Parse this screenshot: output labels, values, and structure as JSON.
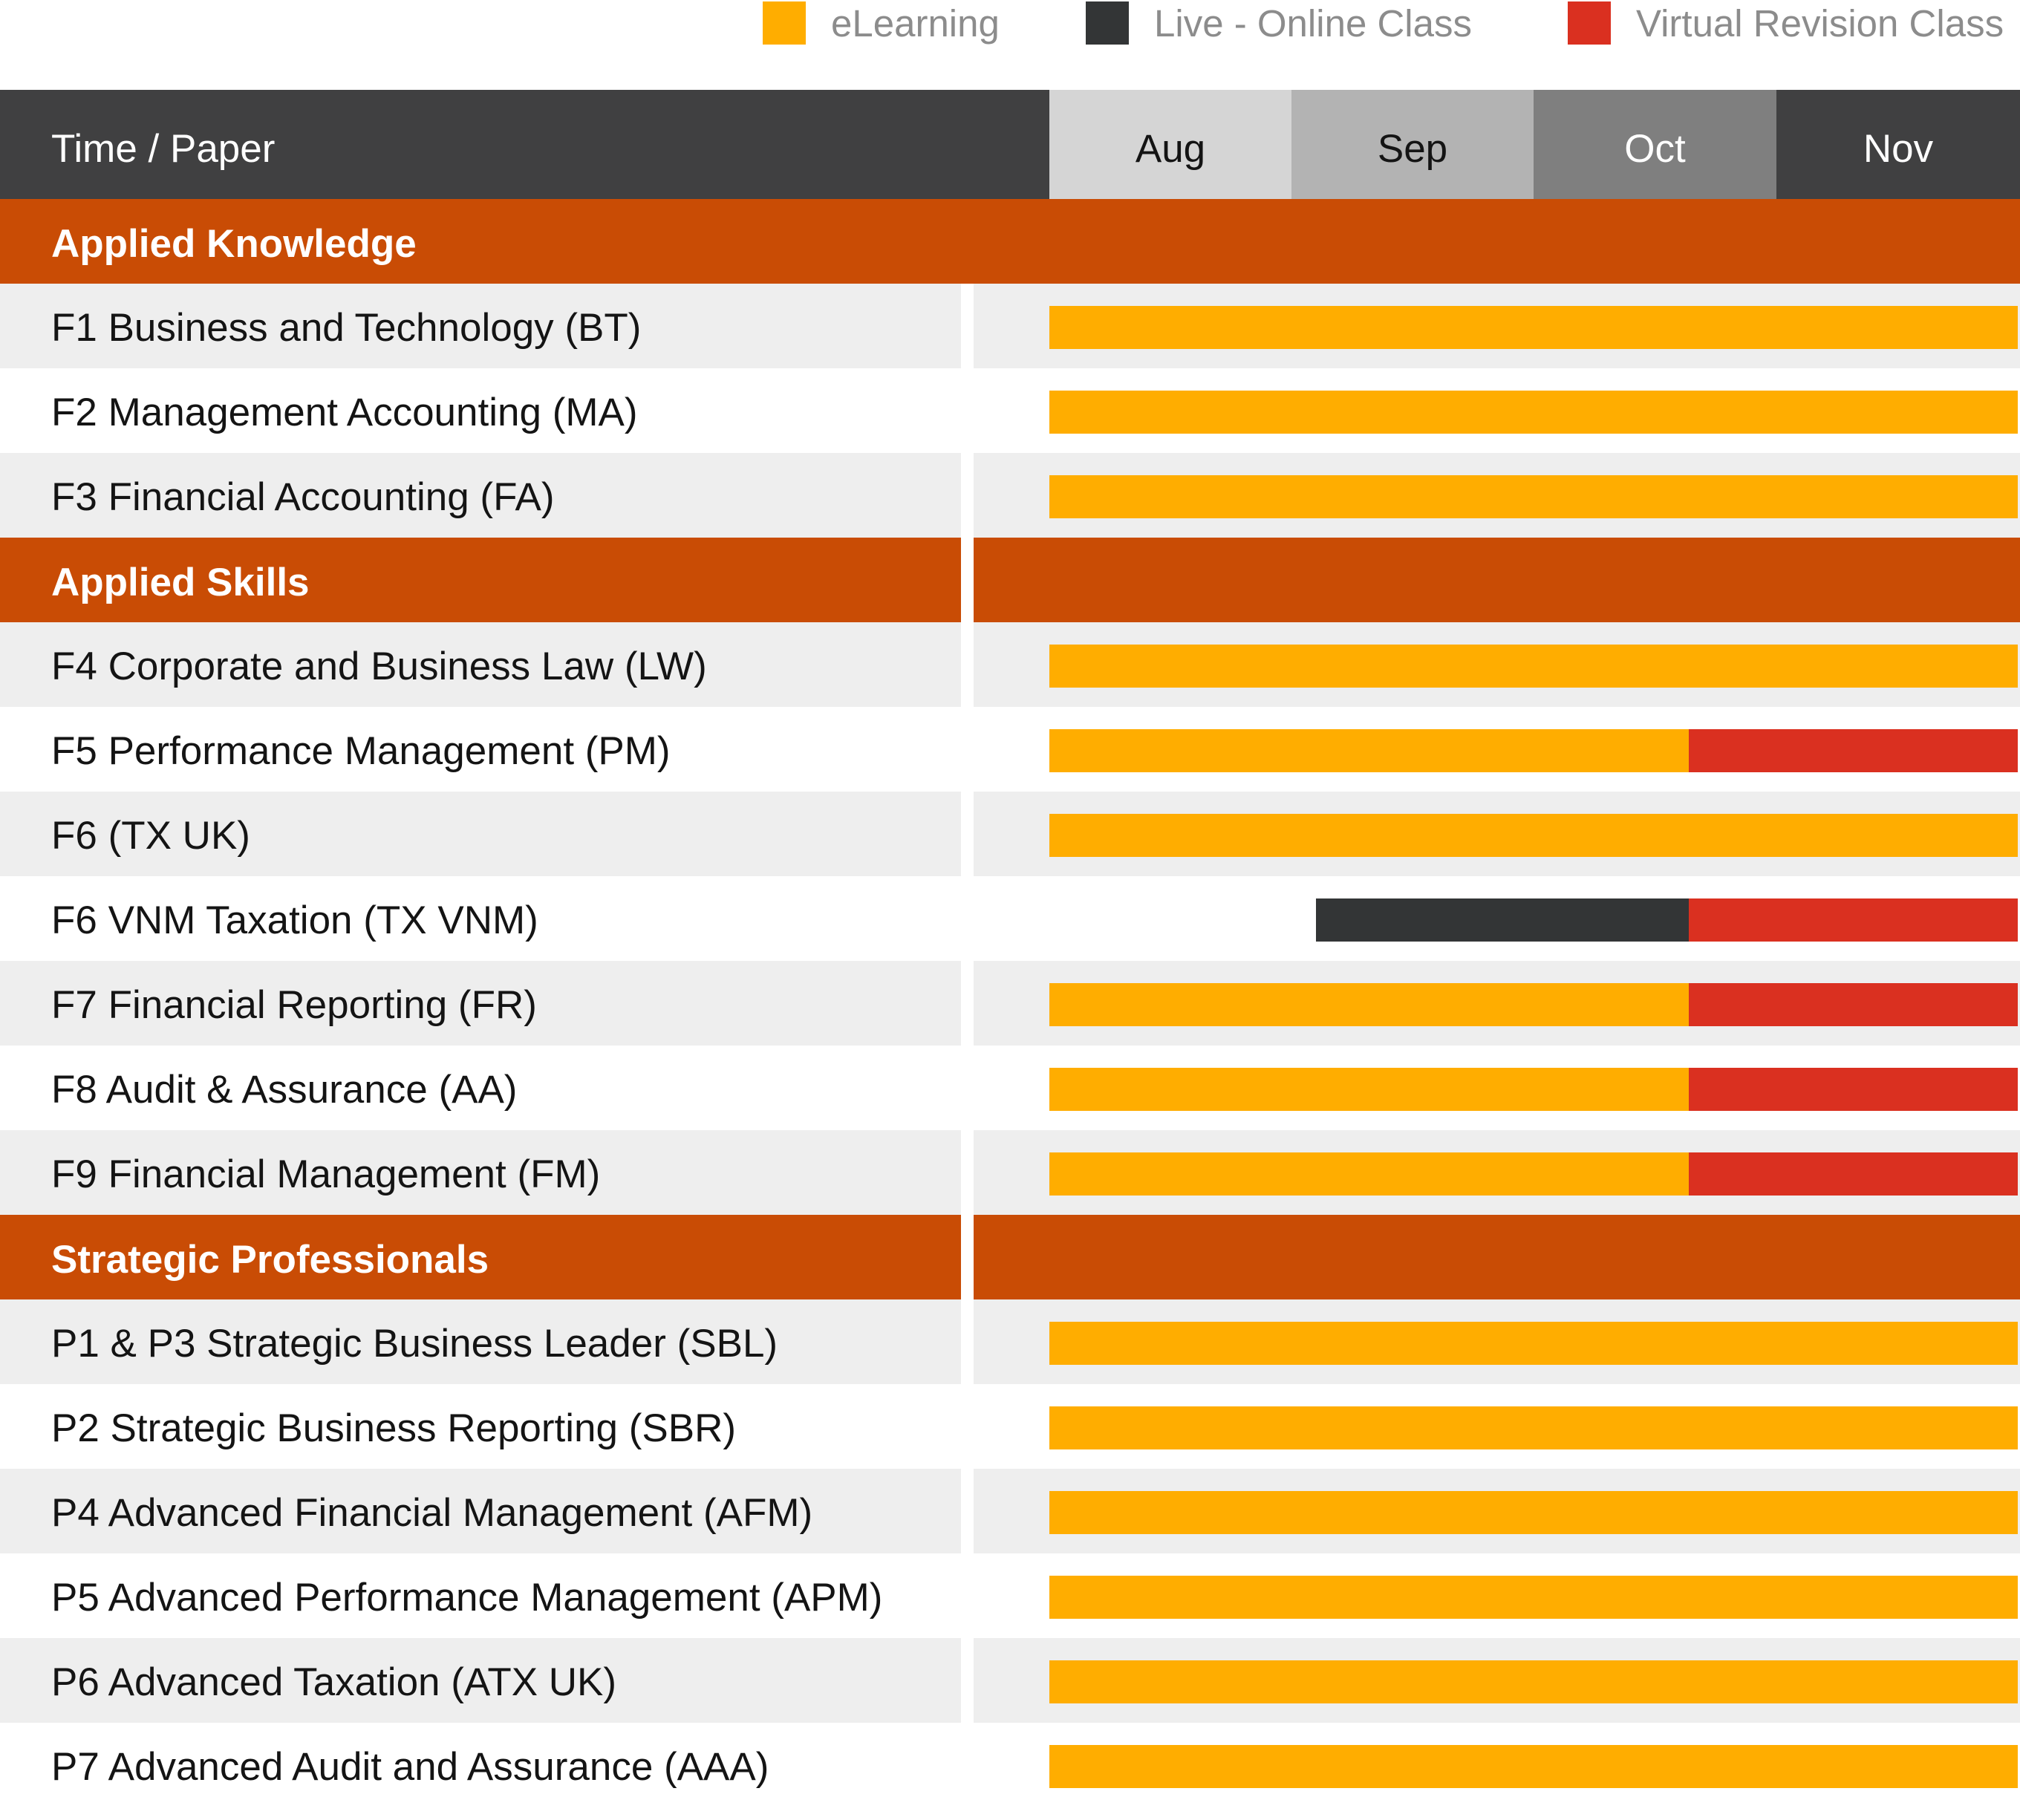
{
  "legend": [
    {
      "label": "eLearning",
      "color": "#FFAD00"
    },
    {
      "label": "Live - Online Class",
      "color": "#333536"
    },
    {
      "label": "Virtual Revision Class",
      "color": "#DA3020"
    }
  ],
  "header": {
    "title": "Time / Paper"
  },
  "months": [
    {
      "label": "Aug",
      "bg": "#D5D5D5",
      "fg": "#141414"
    },
    {
      "label": "Sep",
      "bg": "#B3B3B3",
      "fg": "#141414"
    },
    {
      "label": "Oct",
      "bg": "#7F7F7F",
      "fg": "#FFFFFF"
    },
    {
      "label": "Nov",
      "bg": "#404041",
      "fg": "#FFFFFF"
    }
  ],
  "colors": {
    "section": "#C94C05",
    "row_shaded": "#EEEEEE",
    "row_plain": "#FFFFFF",
    "eLearning": "#FFAD00",
    "live": "#333536",
    "revision": "#DA3020"
  },
  "chart_data": {
    "type": "gantt",
    "time_axis": [
      "Aug",
      "Sep",
      "Oct",
      "Nov"
    ],
    "time_range": [
      "Aug",
      "Nov"
    ],
    "sections": [
      {
        "name": "Applied Knowledge",
        "papers": [
          {
            "name": "F1 Business and Technology (BT)",
            "segments": [
              {
                "type": "eLearning",
                "start": 0,
                "end": 4
              }
            ]
          },
          {
            "name": "F2 Management Accounting (MA)",
            "segments": [
              {
                "type": "eLearning",
                "start": 0,
                "end": 4
              }
            ]
          },
          {
            "name": "F3 Financial Accounting (FA)",
            "segments": [
              {
                "type": "eLearning",
                "start": 0,
                "end": 4
              }
            ]
          }
        ]
      },
      {
        "name": "Applied Skills",
        "papers": [
          {
            "name": "F4 Corporate and Business Law (LW)",
            "segments": [
              {
                "type": "eLearning",
                "start": 0,
                "end": 4
              }
            ]
          },
          {
            "name": "F5 Performance Management (PM)",
            "segments": [
              {
                "type": "eLearning",
                "start": 0,
                "end": 2.64
              },
              {
                "type": "revision",
                "start": 2.64,
                "end": 4
              }
            ]
          },
          {
            "name": "F6 (TX UK)",
            "segments": [
              {
                "type": "eLearning",
                "start": 0,
                "end": 4
              }
            ]
          },
          {
            "name": "F6 VNM Taxation (TX VNM)",
            "segments": [
              {
                "type": "live",
                "start": 1.1,
                "end": 2.64
              },
              {
                "type": "revision",
                "start": 2.64,
                "end": 4
              }
            ]
          },
          {
            "name": "F7 Financial Reporting (FR)",
            "segments": [
              {
                "type": "eLearning",
                "start": 0,
                "end": 2.64
              },
              {
                "type": "revision",
                "start": 2.64,
                "end": 4
              }
            ]
          },
          {
            "name": "F8 Audit & Assurance (AA)",
            "segments": [
              {
                "type": "eLearning",
                "start": 0,
                "end": 2.64
              },
              {
                "type": "revision",
                "start": 2.64,
                "end": 4
              }
            ]
          },
          {
            "name": "F9 Financial Management (FM)",
            "segments": [
              {
                "type": "eLearning",
                "start": 0,
                "end": 2.64
              },
              {
                "type": "revision",
                "start": 2.64,
                "end": 4
              }
            ]
          }
        ]
      },
      {
        "name": "Strategic Professionals",
        "papers": [
          {
            "name": "P1 & P3 Strategic Business Leader (SBL)",
            "segments": [
              {
                "type": "eLearning",
                "start": 0,
                "end": 4
              }
            ]
          },
          {
            "name": "P2 Strategic Business Reporting (SBR)",
            "segments": [
              {
                "type": "eLearning",
                "start": 0,
                "end": 4
              }
            ]
          },
          {
            "name": "P4 Advanced Financial Management (AFM)",
            "segments": [
              {
                "type": "eLearning",
                "start": 0,
                "end": 4
              }
            ]
          },
          {
            "name": "P5 Advanced Performance Management (APM)",
            "segments": [
              {
                "type": "eLearning",
                "start": 0,
                "end": 4
              }
            ]
          },
          {
            "name": "P6 Advanced Taxation (ATX UK)",
            "segments": [
              {
                "type": "eLearning",
                "start": 0,
                "end": 4
              }
            ]
          },
          {
            "name": "P7 Advanced Audit and Assurance (AAA)",
            "segments": [
              {
                "type": "eLearning",
                "start": 0,
                "end": 4
              }
            ]
          }
        ]
      }
    ]
  }
}
